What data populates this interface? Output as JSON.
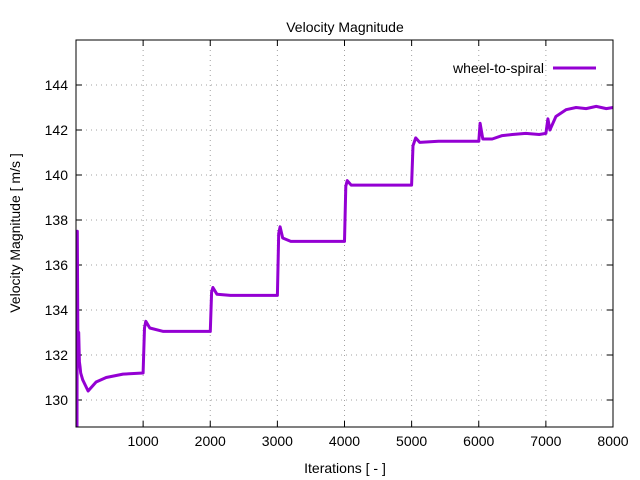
{
  "chart_data": {
    "type": "line",
    "title": "Velocity Magnitude",
    "xlabel": "Iterations [ - ]",
    "ylabel": "Velocity Magnitude [ m/s ]",
    "xlim": [
      0,
      8000
    ],
    "ylim": [
      128.8,
      146
    ],
    "xticks": [
      1000,
      2000,
      3000,
      4000,
      5000,
      6000,
      7000,
      8000
    ],
    "yticks": [
      130,
      132,
      134,
      136,
      138,
      140,
      142,
      144
    ],
    "grid": true,
    "legend_position": "top-right",
    "series": [
      {
        "name": "wheel-to-spiral",
        "color": "#9400d3",
        "x": [
          15,
          20,
          30,
          40,
          50,
          60,
          70,
          100,
          180,
          300,
          450,
          700,
          1000,
          1020,
          1040,
          1100,
          1300,
          2000,
          2020,
          2040,
          2100,
          2300,
          3000,
          3020,
          3040,
          3080,
          3200,
          4000,
          4020,
          4040,
          4100,
          4300,
          5000,
          5020,
          5060,
          5120,
          5400,
          6000,
          6020,
          6060,
          6200,
          6350,
          6500,
          6700,
          6900,
          7000,
          7030,
          7060,
          7150,
          7300,
          7450,
          7600,
          7750,
          7900,
          8000
        ],
        "y": [
          128.8,
          137.5,
          131.6,
          133.0,
          131.7,
          131.5,
          131.2,
          130.9,
          130.4,
          130.8,
          131.0,
          131.15,
          131.2,
          133.2,
          133.5,
          133.2,
          133.05,
          133.05,
          134.8,
          135.0,
          134.7,
          134.65,
          134.65,
          137.4,
          137.7,
          137.2,
          137.05,
          137.05,
          139.5,
          139.75,
          139.55,
          139.55,
          139.55,
          141.3,
          141.65,
          141.45,
          141.5,
          141.5,
          142.3,
          141.6,
          141.6,
          141.75,
          141.8,
          141.85,
          141.8,
          141.85,
          142.5,
          142.0,
          142.6,
          142.9,
          143.0,
          142.95,
          143.05,
          142.95,
          143.0
        ]
      }
    ]
  }
}
